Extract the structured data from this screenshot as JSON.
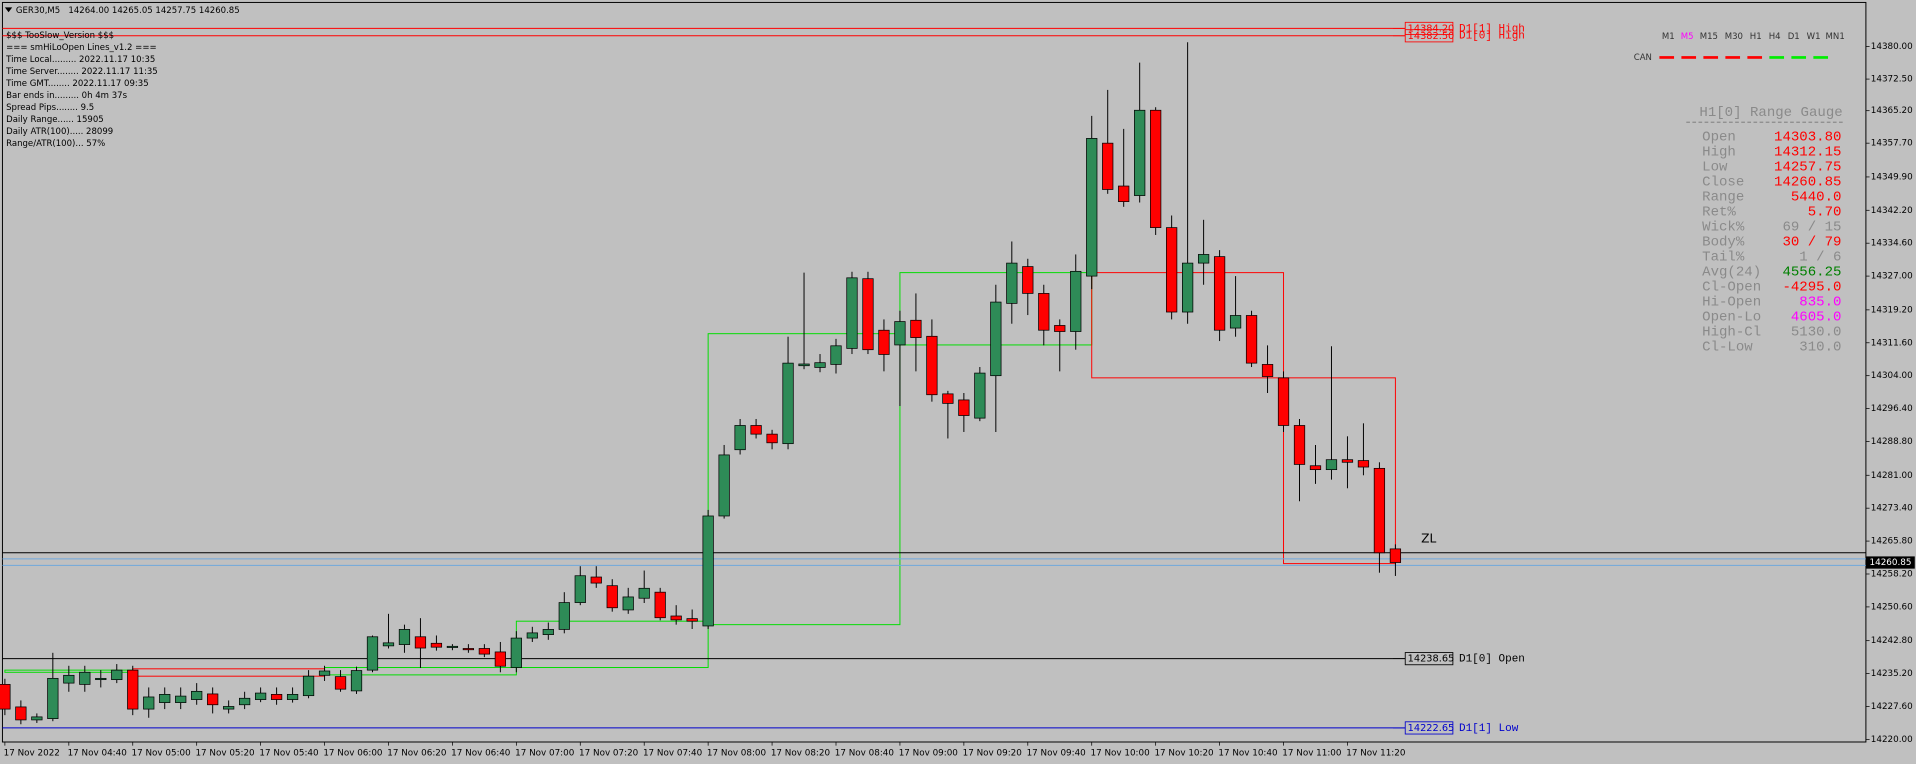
{
  "header": {
    "symbol": "GER30,M5",
    "quote": "14264.00 14265.05 14257.75 14260.85"
  },
  "info_panel": [
    "$$$ TooSlow_Version $$$",
    "=== smHiLoOpen Lines_v1.2 ===",
    "Time Local......... 2022.11.17 10:35",
    "Time Server........ 2022.11.17 11:35",
    "Time GMT........ 2022.11.17 09:35",
    "Bar ends in......... 0h 4m 37s",
    "Spread Pips........ 9.5",
    "Daily Range...... 15905",
    "Daily ATR(100)..... 28099",
    "Range/ATR(100)... 57%"
  ],
  "timeframes": {
    "items": [
      "M1",
      "M5",
      "M15",
      "M30",
      "H1",
      "H4",
      "D1",
      "W1",
      "MN1"
    ],
    "active": "M5",
    "tag": "CAN"
  },
  "gauge": {
    "title": "H1[0] Range Gauge",
    "rows": [
      {
        "label": "Open",
        "value": "14303.80",
        "color": "#ff0000"
      },
      {
        "label": "High",
        "value": "14312.15",
        "color": "#ff0000"
      },
      {
        "label": "Low",
        "value": "14257.75",
        "color": "#ff0000"
      },
      {
        "label": "Close",
        "value": "14260.85",
        "color": "#ff0000"
      },
      {
        "label": "Range",
        "value": "5440.0",
        "color": "#ff0000"
      },
      {
        "label": "Ret%",
        "value": "5.70",
        "color": "#ff0000"
      },
      {
        "label": "Wick%",
        "value": "69 / 15",
        "color": "#8a8a8a"
      },
      {
        "label": "Body%",
        "value": "30 / 79",
        "color": "#ff0000"
      },
      {
        "label": "Tail%",
        "value": "1 / 6",
        "color": "#8a8a8a"
      },
      {
        "label": "Avg(24)",
        "value": "4556.25",
        "color": "#008000"
      },
      {
        "label": "Cl-Open",
        "value": "-4295.0",
        "color": "#ff0000"
      },
      {
        "label": "Hi-Open",
        "value": "835.0",
        "color": "#ff00ff"
      },
      {
        "label": "Open-Lo",
        "value": "4605.0",
        "color": "#ff00ff"
      },
      {
        "label": "High-Cl",
        "value": "5130.0",
        "color": "#8a8a8a"
      },
      {
        "label": "Cl-Low",
        "value": "310.0",
        "color": "#8a8a8a"
      }
    ]
  },
  "chart_data": {
    "type": "candlestick",
    "categories": [
      "17 Nov 2022",
      null,
      null,
      null,
      "17 Nov 04:40",
      null,
      null,
      null,
      "17 Nov 05:00",
      null,
      null,
      null,
      "17 Nov 05:20",
      null,
      null,
      null,
      "17 Nov 05:40",
      null,
      null,
      null,
      "17 Nov 06:00",
      null,
      null,
      null,
      "17 Nov 06:20",
      null,
      null,
      null,
      "17 Nov 06:40",
      null,
      null,
      null,
      "17 Nov 07:00",
      null,
      null,
      null,
      "17 Nov 07:20",
      null,
      null,
      null,
      "17 Nov 07:40",
      null,
      null,
      null,
      "17 Nov 08:00",
      null,
      null,
      null,
      "17 Nov 08:20",
      null,
      null,
      null,
      "17 Nov 08:40",
      null,
      null,
      null,
      "17 Nov 09:00",
      null,
      null,
      null,
      "17 Nov 09:20",
      null,
      null,
      null,
      "17 Nov 09:40",
      null,
      null,
      null,
      "17 Nov 10:00",
      null,
      null,
      null,
      "17 Nov 10:20",
      null,
      null,
      null,
      "17 Nov 10:40",
      null,
      null,
      null,
      "17 Nov 11:00",
      null,
      null,
      null,
      "17 Nov 11:20",
      null,
      null,
      null
    ],
    "open": [
      14232.7,
      14227.5,
      14224.5,
      14224.8,
      14233,
      14232.7,
      14233.8,
      14233.8,
      14236,
      14227,
      14228.5,
      14228.5,
      14229.2,
      14230.5,
      14227,
      14228,
      14229.2,
      14230.4,
      14229.2,
      14230.1,
      14234.8,
      14234.5,
      14231.2,
      14236,
      14241.6,
      14241.9,
      14243.7,
      14242.2,
      14241.3,
      14241,
      14241,
      14240.2,
      14236.6,
      14243.4,
      14244.2,
      14245.4,
      14251.6,
      14257.5,
      14255.5,
      14249.9,
      14252.6,
      14254,
      14248.5,
      14247.9,
      14246.2,
      14271.6,
      14286.9,
      14292.5,
      14290.5,
      14288.3,
      14306.3,
      14305.9,
      14306.6,
      14310.3,
      14326.4,
      14314.5,
      14311.1,
      14316.8,
      14313.1,
      14299.8,
      14298.4,
      14294.2,
      14304,
      14320.7,
      14329.2,
      14323,
      14315.6,
      14314.2,
      14327,
      14357.7,
      14347.8,
      14345.6,
      14365.3,
      14338.2,
      14318.7,
      14330,
      14331.5,
      14315,
      14317.9,
      14306.6,
      14303.5,
      14292.5,
      14283.2,
      14282.3,
      14284.6,
      14284.4,
      14282.6,
      14264.0
    ],
    "high": [
      14234,
      14229,
      14226,
      14240,
      14237,
      14237,
      14236,
      14237.4,
      14237,
      14232,
      14232,
      14232,
      14233,
      14232,
      14229,
      14231,
      14232,
      14232,
      14232,
      14236,
      14237,
      14236,
      14236.8,
      14244,
      14249,
      14246.5,
      14248,
      14244,
      14242,
      14242,
      14242,
      14242.5,
      14245,
      14246,
      14247,
      14254,
      14260,
      14260,
      14257,
      14255,
      14259,
      14255,
      14251,
      14250,
      14273,
      14288,
      14294,
      14294,
      14291.5,
      14313,
      14327.8,
      14309,
      14312.5,
      14328,
      14328,
      14317,
      14319,
      14323,
      14317,
      14300.5,
      14300,
      14306,
      14325,
      14335,
      14331,
      14325,
      14317,
      14332,
      14364,
      14370,
      14361,
      14376.3,
      14366,
      14341,
      14381,
      14340,
      14333,
      14327,
      14319,
      14311,
      14305,
      14294,
      14288,
      14310.8,
      14290,
      14293,
      14284,
      14265.05
    ],
    "low": [
      14225.6,
      14223.5,
      14223.8,
      14224.2,
      14231,
      14231,
      14232,
      14233,
      14225.6,
      14225,
      14227,
      14227,
      14228,
      14226,
      14226,
      14227,
      14228.6,
      14228,
      14228.5,
      14229.5,
      14233.5,
      14231,
      14230.5,
      14235.5,
      14241,
      14240,
      14236.5,
      14240.5,
      14240.6,
      14240,
      14239,
      14235.5,
      14235.5,
      14242.5,
      14243,
      14244.5,
      14251,
      14255,
      14249.5,
      14249,
      14251.5,
      14247.5,
      14246.5,
      14245.5,
      14245.5,
      14271,
      14285.8,
      14289.5,
      14287,
      14287,
      14305.5,
      14304.8,
      14304.5,
      14309,
      14309,
      14305,
      14297,
      14305,
      14298,
      14289.5,
      14291,
      14293.5,
      14291,
      14316,
      14318,
      14311,
      14305,
      14310,
      14324,
      14346,
      14343,
      14344,
      14336.5,
      14317,
      14316,
      14325,
      14312,
      14313,
      14306,
      14300,
      14291,
      14275,
      14279,
      14280,
      14278,
      14281,
      14258.5,
      14257.75
    ],
    "close": [
      14227,
      14224.5,
      14225.2,
      14234.1,
      14234.8,
      14235.5,
      14234.1,
      14236,
      14227,
      14229.8,
      14230.4,
      14230,
      14231.1,
      14228,
      14227.6,
      14229.5,
      14230.7,
      14229.2,
      14230.4,
      14234.6,
      14235.8,
      14231.6,
      14235.9,
      14243.7,
      14242.3,
      14245.4,
      14241.1,
      14241.3,
      14241.5,
      14240.7,
      14239.7,
      14236.9,
      14243.4,
      14244.6,
      14245.4,
      14251.6,
      14257.8,
      14256.1,
      14250.4,
      14252.9,
      14254.9,
      14248.1,
      14247.6,
      14247.3,
      14271.6,
      14285.7,
      14292.5,
      14290.5,
      14288.5,
      14306.9,
      14306.7,
      14307,
      14310.9,
      14326.6,
      14310,
      14308.9,
      14316.5,
      14312.8,
      14299.6,
      14297.6,
      14294.8,
      14304.6,
      14321,
      14330,
      14323,
      14314.5,
      14314.2,
      14328.1,
      14358.8,
      14347,
      14344.2,
      14365.3,
      14338.2,
      14318.7,
      14330,
      14332,
      14314.5,
      14317.9,
      14306.9,
      14303.8,
      14292.5,
      14283.5,
      14282.3,
      14284.6,
      14284,
      14282.9,
      14263.1,
      14260.85
    ],
    "up_color": "#2e8b57",
    "down_color": "#ff0000",
    "ylim": [
      14219.4,
      14390.2
    ],
    "yticks": [
      {
        "value": 14380,
        "label": "14380.00"
      },
      {
        "value": 14372.5,
        "label": "14372.50"
      },
      {
        "value": 14365.2,
        "label": "14365.20"
      },
      {
        "value": 14357.7,
        "label": "14357.70"
      },
      {
        "value": 14349.9,
        "label": "14349.90"
      },
      {
        "value": 14342.2,
        "label": "14342.20"
      },
      {
        "value": 14334.6,
        "label": "14334.60"
      },
      {
        "value": 14327,
        "label": "14327.00"
      },
      {
        "value": 14319.2,
        "label": "14319.20"
      },
      {
        "value": 14311.6,
        "label": "14311.60"
      },
      {
        "value": 14304,
        "label": "14304.00"
      },
      {
        "value": 14296.4,
        "label": "14296.40"
      },
      {
        "value": 14288.8,
        "label": "14288.80"
      },
      {
        "value": 14281,
        "label": "14281.00"
      },
      {
        "value": 14273.4,
        "label": "14273.40"
      },
      {
        "value": 14265.8,
        "label": "14265.80"
      },
      {
        "value": 14258.2,
        "label": "14258.20"
      },
      {
        "value": 14250.6,
        "label": "14250.60"
      },
      {
        "value": 14242.8,
        "label": "14242.80"
      },
      {
        "value": 14235.2,
        "label": "14235.20"
      },
      {
        "value": 14227.6,
        "label": "14227.60"
      },
      {
        "value": 14220,
        "label": "14220.00"
      }
    ],
    "levels": [
      {
        "name": "D1[1] High",
        "value": 14384.2,
        "label": "14384.20",
        "color": "#ff0000"
      },
      {
        "name": "D1[0] High",
        "value": 14382.5,
        "label": "14382.50",
        "color": "#ff0000"
      },
      {
        "name": "D1[0] Open",
        "value": 14238.65,
        "label": "14238.65",
        "color": "#000000"
      },
      {
        "name": "D1[1] Low",
        "value": 14222.65,
        "label": "14222.65",
        "color": "#0000cc"
      }
    ],
    "hlines": [
      {
        "value": 14263.1,
        "color": "#000000"
      },
      {
        "value": 14261.7,
        "color": "#6fa8dc"
      },
      {
        "value": 14260.2,
        "color": "#6fa8dc"
      }
    ],
    "boxes": [
      {
        "start": 0,
        "end": 8,
        "high": 14236,
        "low": 14235.5,
        "color": "#00dd00"
      },
      {
        "start": 8,
        "end": 20,
        "high": 14236.3,
        "low": 14234.6,
        "color": "#ff0000"
      },
      {
        "start": 20,
        "end": 32,
        "high": 14236.6,
        "low": 14234.9,
        "color": "#00dd00"
      },
      {
        "start": 32,
        "end": 44,
        "high": 14247.3,
        "low": 14236.6,
        "color": "#00dd00"
      },
      {
        "start": 44,
        "end": 56,
        "high": 14313.7,
        "low": 14246.5,
        "color": "#00dd00"
      },
      {
        "start": 56,
        "end": 68,
        "high": 14327.8,
        "low": 14311.1,
        "color": "#00dd00"
      },
      {
        "start": 68,
        "end": 80,
        "high": 14327.8,
        "low": 14303.5,
        "color": "#ff0000"
      },
      {
        "start": 80,
        "end": 87,
        "high": 14303.5,
        "low": 14260.6,
        "color": "#ff0000"
      }
    ],
    "current": {
      "value": 14260.85,
      "label": "14260.85"
    },
    "annotation": "ZL"
  }
}
